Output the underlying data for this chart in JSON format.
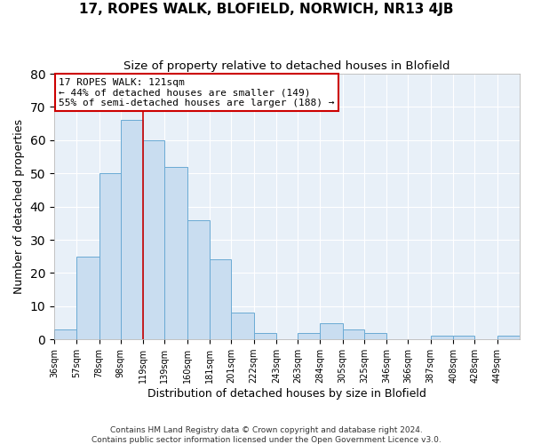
{
  "title": "17, ROPES WALK, BLOFIELD, NORWICH, NR13 4JB",
  "subtitle": "Size of property relative to detached houses in Blofield",
  "xlabel": "Distribution of detached houses by size in Blofield",
  "ylabel": "Number of detached properties",
  "bin_labels": [
    "36sqm",
    "57sqm",
    "78sqm",
    "98sqm",
    "119sqm",
    "139sqm",
    "160sqm",
    "181sqm",
    "201sqm",
    "222sqm",
    "243sqm",
    "263sqm",
    "284sqm",
    "305sqm",
    "325sqm",
    "346sqm",
    "366sqm",
    "387sqm",
    "408sqm",
    "428sqm",
    "449sqm"
  ],
  "bar_values": [
    3,
    25,
    50,
    66,
    60,
    52,
    36,
    24,
    8,
    2,
    0,
    2,
    5,
    3,
    2,
    0,
    0,
    1,
    1,
    0,
    1
  ],
  "bar_color": "#c9ddf0",
  "bar_edge_color": "#6aaad4",
  "vline_x": 119,
  "annotation_line1": "17 ROPES WALK: 121sqm",
  "annotation_line2": "← 44% of detached houses are smaller (149)",
  "annotation_line3": "55% of semi-detached houses are larger (188) →",
  "annotation_box_color": "white",
  "annotation_box_edge_color": "#cc0000",
  "vline_color": "#cc0000",
  "ylim": [
    0,
    80
  ],
  "yticks": [
    0,
    10,
    20,
    30,
    40,
    50,
    60,
    70,
    80
  ],
  "footer_line1": "Contains HM Land Registry data © Crown copyright and database right 2024.",
  "footer_line2": "Contains public sector information licensed under the Open Government Licence v3.0.",
  "background_color": "#e8f0f8",
  "grid_color": "#ffffff",
  "bin_edges": [
    36,
    57,
    78,
    98,
    119,
    139,
    160,
    181,
    201,
    222,
    243,
    263,
    284,
    305,
    325,
    346,
    366,
    387,
    408,
    428,
    449
  ],
  "figwidth": 6.0,
  "figheight": 5.0,
  "dpi": 100
}
